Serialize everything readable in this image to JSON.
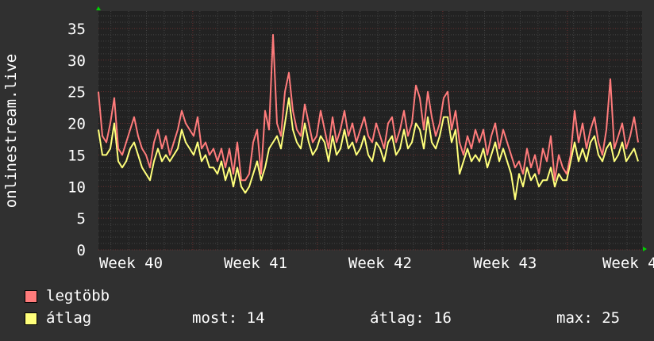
{
  "chart_data": {
    "type": "line",
    "ylabel": "onlinestream.live",
    "ylim": [
      0,
      37.75
    ],
    "yticks": [
      0,
      5,
      10,
      15,
      20,
      25,
      30,
      35
    ],
    "x_unit": "days",
    "xlim": [
      0,
      30.55
    ],
    "x_step_days": 0.223,
    "week_boundaries": [
      5.3,
      12.3,
      19.35,
      26.35
    ],
    "xticks": [
      {
        "label": "Week 40",
        "at": 1.83
      },
      {
        "label": "Week 41",
        "at": 8.83
      },
      {
        "label": "Week 42",
        "at": 15.83
      },
      {
        "label": "Week 43",
        "at": 22.85
      },
      {
        "label": "Week 4",
        "at": 29.85
      }
    ],
    "grid": true,
    "series": [
      {
        "name": "legtöbb",
        "color": "#ff7b7b",
        "values": [
          25,
          18,
          17,
          20,
          24,
          16,
          15,
          17,
          19,
          21,
          18,
          16,
          15,
          13,
          17,
          19,
          16,
          18,
          15,
          17,
          19,
          22,
          20,
          19,
          18,
          21,
          16,
          17,
          15,
          16,
          14,
          16,
          13,
          16,
          12,
          17,
          11,
          11,
          12,
          17,
          19,
          12,
          22,
          19,
          34,
          20,
          18,
          25,
          28,
          22,
          19,
          18,
          23,
          20,
          17,
          18,
          22,
          19,
          16,
          21,
          17,
          19,
          22,
          18,
          20,
          17,
          19,
          21,
          18,
          17,
          20,
          18,
          16,
          20,
          21,
          17,
          19,
          22,
          18,
          20,
          26,
          24,
          19,
          25,
          21,
          18,
          20,
          24,
          25,
          19,
          22,
          17,
          15,
          18,
          16,
          19,
          17,
          19,
          15,
          18,
          20,
          16,
          19,
          17,
          15,
          13,
          14,
          12,
          16,
          13,
          15,
          12,
          16,
          14,
          18,
          11,
          15,
          13,
          12,
          15,
          22,
          17,
          20,
          16,
          19,
          21,
          17,
          15,
          19,
          27,
          16,
          18,
          20,
          16,
          18,
          21,
          17
        ]
      },
      {
        "name": "átlag",
        "color": "#ffff7b",
        "values": [
          19,
          15,
          15,
          16,
          20,
          14,
          13,
          14,
          16,
          17,
          15,
          13,
          12,
          11,
          14,
          16,
          14,
          15,
          14,
          15,
          16,
          19,
          17,
          16,
          15,
          17,
          14,
          15,
          13,
          13,
          12,
          14,
          11,
          13,
          10,
          13,
          10,
          9,
          10,
          12,
          14,
          11,
          13,
          16,
          17,
          18,
          16,
          20,
          24,
          19,
          17,
          16,
          20,
          17,
          15,
          16,
          18,
          17,
          14,
          18,
          15,
          16,
          19,
          16,
          17,
          15,
          16,
          18,
          15,
          14,
          17,
          16,
          14,
          17,
          18,
          15,
          16,
          19,
          16,
          17,
          20,
          19,
          16,
          21,
          17,
          16,
          18,
          21,
          21,
          17,
          19,
          12,
          14,
          16,
          14,
          15,
          14,
          16,
          13,
          15,
          17,
          14,
          16,
          14,
          12,
          8,
          12,
          10,
          13,
          11,
          12,
          10,
          11,
          11,
          13,
          10,
          12,
          11,
          11,
          14,
          17,
          14,
          16,
          14,
          17,
          18,
          15,
          14,
          16,
          17,
          14,
          15,
          17,
          14,
          15,
          16,
          14
        ]
      }
    ]
  },
  "legend": {
    "max_label": "legtöbb",
    "avg_label": "átlag",
    "now": "most: 14",
    "avg": "átlag: 16",
    "max": "max: 25"
  }
}
